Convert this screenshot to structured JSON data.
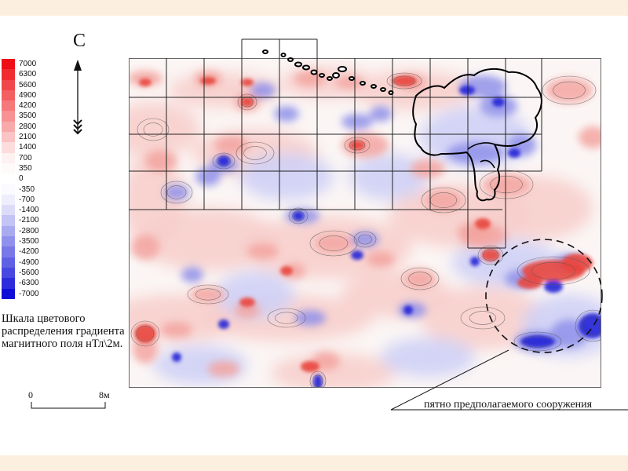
{
  "north": {
    "label": "С"
  },
  "legend": {
    "items": [
      {
        "value": "7000",
        "color": "#ee0e16"
      },
      {
        "value": "6300",
        "color": "#f02c30"
      },
      {
        "value": "5600",
        "color": "#f1474a"
      },
      {
        "value": "4900",
        "color": "#f36062"
      },
      {
        "value": "4200",
        "color": "#f5787a"
      },
      {
        "value": "3500",
        "color": "#f79192"
      },
      {
        "value": "2800",
        "color": "#f8aaab"
      },
      {
        "value": "2100",
        "color": "#fac3c4"
      },
      {
        "value": "1400",
        "color": "#fcdcdc"
      },
      {
        "value": "700",
        "color": "#fef1f1"
      },
      {
        "value": "350",
        "color": "#fffafa"
      },
      {
        "value": "0",
        "color": "#ffffff"
      },
      {
        "value": "-350",
        "color": "#fafaff"
      },
      {
        "value": "-700",
        "color": "#eeeefc"
      },
      {
        "value": "-1400",
        "color": "#dcdcf9"
      },
      {
        "value": "-2100",
        "color": "#c3c3f5"
      },
      {
        "value": "-2800",
        "color": "#aaaaf1"
      },
      {
        "value": "-3500",
        "color": "#9191ed"
      },
      {
        "value": "-4200",
        "color": "#7878e9"
      },
      {
        "value": "-4900",
        "color": "#6060e5"
      },
      {
        "value": "-5600",
        "color": "#4747e1"
      },
      {
        "value": "-6300",
        "color": "#2c2cdd"
      },
      {
        "value": "-7000",
        "color": "#0e0ed8"
      }
    ],
    "caption": "Шкала цветового распределения градиента магнитного поля нТл\\2м."
  },
  "scale": {
    "start": "0",
    "end": "8м"
  },
  "annotation": {
    "label": "пятно предполагаемого сооружения"
  }
}
